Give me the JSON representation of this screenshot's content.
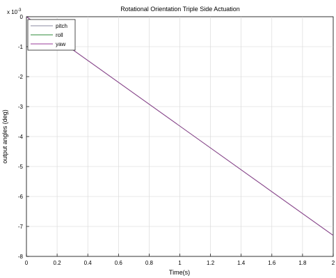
{
  "chart_data": {
    "type": "line",
    "title": "Rotational Orientation Triple Side Actuation",
    "xlabel": "Time(s)",
    "ylabel": "output angles (deg)",
    "y_exponent_label": "x 10",
    "y_exponent_power": "-3",
    "xlim": [
      0,
      2
    ],
    "ylim": [
      -8,
      0
    ],
    "grid": true,
    "legend_position": "top-left",
    "x_ticks": [
      0,
      0.2,
      0.4,
      0.6,
      0.8,
      1,
      1.2,
      1.4,
      1.6,
      1.8,
      2
    ],
    "x_tick_labels": [
      "0",
      "0.2",
      "0.4",
      "0.6",
      "0.8",
      "1",
      "1.2",
      "1.4",
      "1.6",
      "1.8",
      "2"
    ],
    "y_ticks": [
      0,
      -1,
      -2,
      -3,
      -4,
      -5,
      -6,
      -7,
      -8
    ],
    "y_tick_labels": [
      "0",
      "-1",
      "-2",
      "-3",
      "-4",
      "-5",
      "-6",
      "-7",
      "-8"
    ],
    "series": [
      {
        "name": "pitch",
        "color": "#8a8aa0",
        "x": [
          0,
          2
        ],
        "y": [
          0,
          -7.3
        ]
      },
      {
        "name": "roll",
        "color": "#2e8b3a",
        "x": [
          0,
          2
        ],
        "y": [
          0,
          -7.3
        ]
      },
      {
        "name": "yaw",
        "color": "#9a3a9a",
        "x": [
          0,
          2
        ],
        "y": [
          0,
          -7.3
        ]
      }
    ]
  }
}
